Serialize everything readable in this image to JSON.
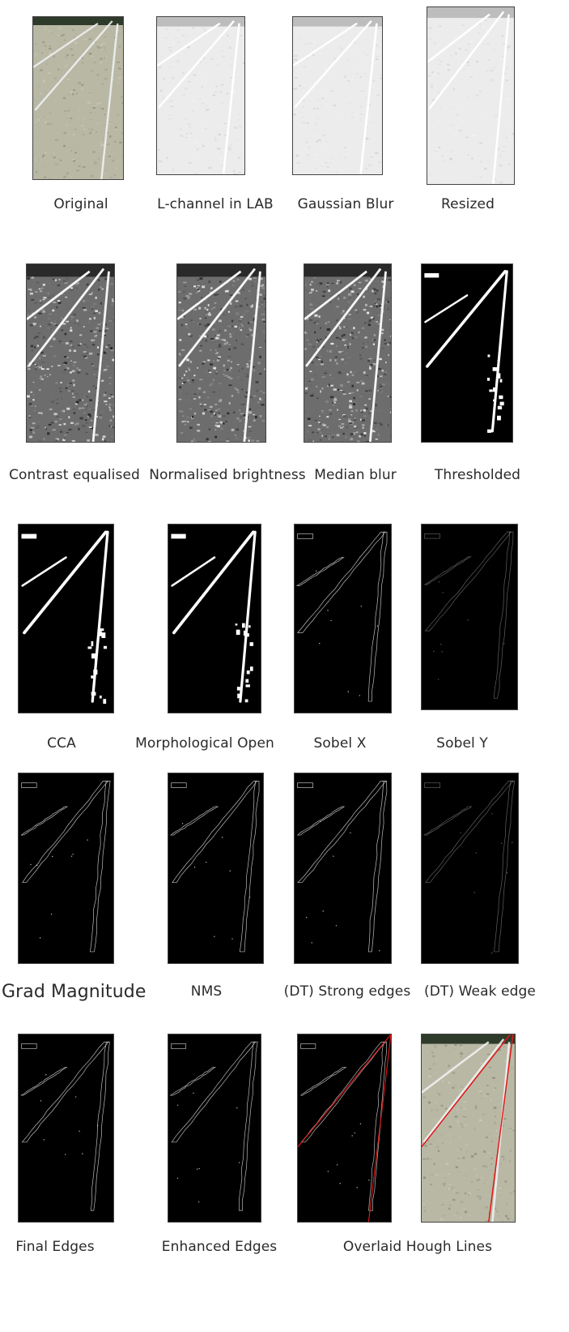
{
  "stages": [
    {
      "label": "Original",
      "kind": "photo"
    },
    {
      "label": "L-channel in LAB",
      "kind": "light"
    },
    {
      "label": "Gaussian Blur",
      "kind": "light"
    },
    {
      "label": "Resized",
      "kind": "light"
    },
    {
      "label": "Contrast equalised",
      "kind": "gray"
    },
    {
      "label": "Normalised brightness",
      "kind": "gray"
    },
    {
      "label": "Median blur",
      "kind": "gray"
    },
    {
      "label": "Thresholded",
      "kind": "binary"
    },
    {
      "label": "CCA",
      "kind": "binary"
    },
    {
      "label": "Morphological Open",
      "kind": "binary"
    },
    {
      "label": "Sobel X",
      "kind": "edges"
    },
    {
      "label": "Sobel Y",
      "kind": "edges-faint"
    },
    {
      "label": "Grad Magnitude",
      "kind": "edges"
    },
    {
      "label": "NMS",
      "kind": "edges"
    },
    {
      "label": "(DT) Strong edges",
      "kind": "edges"
    },
    {
      "label": "(DT) Weak edge",
      "kind": "edges-faint"
    },
    {
      "label": "Final Edges",
      "kind": "edges"
    },
    {
      "label": "Enhanced Edges",
      "kind": "edges"
    },
    {
      "label": "Overlaid Hough Lines",
      "kind": "edges-red"
    },
    {
      "label": "",
      "kind": "photo-red"
    }
  ],
  "colors": {
    "hough_line": "#e01818",
    "edge": "#cfcfcf",
    "binary_fg": "#ffffff",
    "background": "#000000"
  }
}
